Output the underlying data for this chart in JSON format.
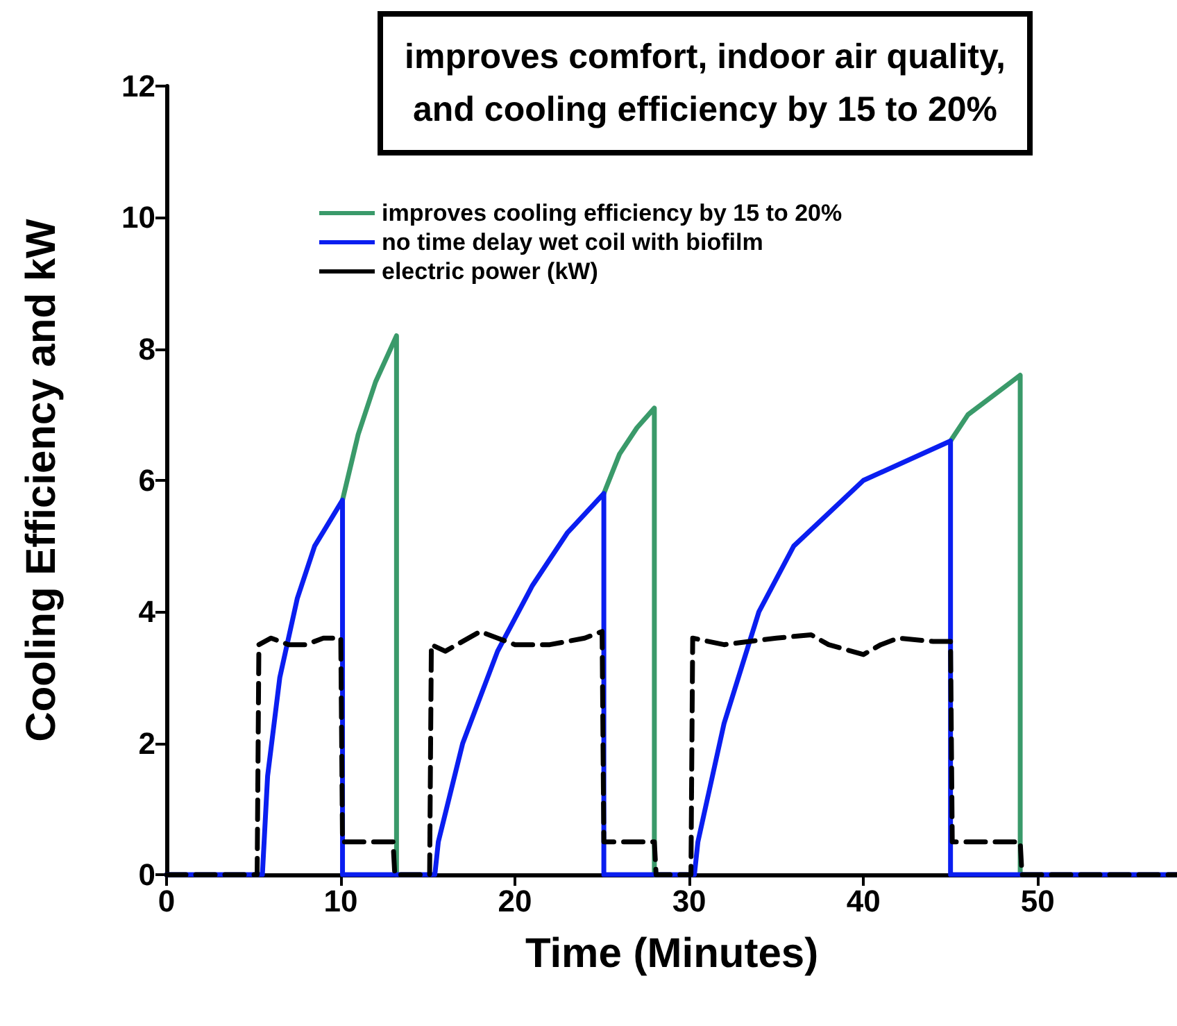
{
  "chart_data": {
    "type": "line",
    "title": "improves comfort, indoor air quality,\nand cooling efficiency by 15 to 20%",
    "xlabel": "Time (Minutes)",
    "ylabel": "Cooling Efficiency and kW",
    "xlim": [
      0,
      58
    ],
    "xticks": [
      0,
      10,
      20,
      30,
      40,
      50
    ],
    "ylim": [
      0,
      12
    ],
    "yticks": [
      0,
      2,
      4,
      6,
      8,
      10,
      12
    ],
    "grid": false,
    "legend": "top",
    "marker": "none",
    "series": [
      {
        "name": "improves cooling efficiency by 15 to 20%",
        "color": "#3a9a6a",
        "line_style": "solid",
        "x": [
          10.1,
          11,
          12,
          13.2,
          13.2,
          13.3,
          25.1,
          26,
          27,
          28,
          28,
          28.1,
          45,
          46,
          48,
          49,
          49
        ],
        "values": [
          5.7,
          6.7,
          7.5,
          8.2,
          0,
          null,
          5.8,
          6.4,
          6.8,
          7.1,
          0,
          null,
          6.6,
          7,
          7.4,
          7.6,
          0
        ]
      },
      {
        "name": "no time delay wet coil with biofilm",
        "color": "#0a1ef0",
        "line_style": "solid",
        "x": [
          0,
          5.5,
          5.8,
          6.5,
          7.5,
          8.5,
          10.1,
          10.1,
          15.4,
          15.6,
          17,
          19,
          21,
          23,
          25.1,
          25.1,
          30.3,
          30.5,
          32,
          34,
          36,
          40,
          45,
          45,
          58
        ],
        "values": [
          0,
          0,
          1.5,
          3,
          4.2,
          5,
          5.7,
          0,
          0,
          0.5,
          2,
          3.4,
          4.4,
          5.2,
          5.8,
          0,
          0,
          0.5,
          2.3,
          4,
          5,
          6,
          6.6,
          0,
          0
        ]
      },
      {
        "name": "electric power (kW)",
        "color": "#000000",
        "line_style": "dashed",
        "x": [
          0,
          5.2,
          5.3,
          6,
          7,
          8,
          9,
          10,
          10.1,
          13,
          13.1,
          15.1,
          15.2,
          16,
          18,
          19,
          20,
          22,
          24,
          25,
          25.1,
          28,
          28.1,
          30.1,
          30.2,
          32,
          35,
          37,
          38,
          40,
          41,
          42,
          44,
          45,
          45.1,
          49,
          49.1,
          58
        ],
        "values": [
          0,
          0,
          3.5,
          3.6,
          3.5,
          3.5,
          3.6,
          3.6,
          0.5,
          0.5,
          0,
          0,
          3.5,
          3.4,
          3.7,
          3.6,
          3.5,
          3.5,
          3.6,
          3.7,
          0.5,
          0.5,
          0,
          0,
          3.6,
          3.5,
          3.6,
          3.65,
          3.5,
          3.35,
          3.5,
          3.6,
          3.55,
          3.55,
          0.5,
          0.5,
          0,
          0
        ]
      }
    ]
  }
}
